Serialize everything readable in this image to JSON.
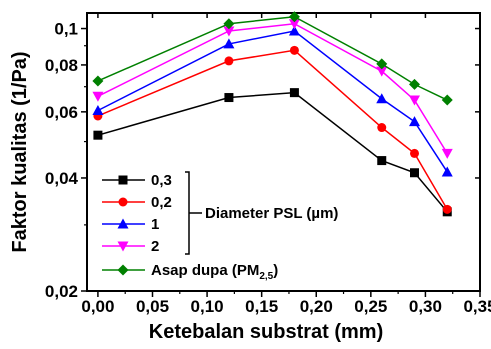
{
  "chart_data": {
    "type": "line",
    "xlabel": "Ketebalan substrat (mm)",
    "ylabel": "Faktor kualitas (1/Pa)",
    "x_scale": "linear",
    "y_scale": "log",
    "xlim": [
      -0.01,
      0.35
    ],
    "ylim": [
      0.02,
      0.11
    ],
    "x_ticks": [
      0.0,
      0.05,
      0.1,
      0.15,
      0.2,
      0.25,
      0.3,
      0.35
    ],
    "x_tick_labels": [
      "0,00",
      "0,05",
      "0,10",
      "0,15",
      "0,20",
      "0,25",
      "0,30",
      "0,35"
    ],
    "y_ticks": [
      0.02,
      0.04,
      0.06,
      0.08,
      0.1
    ],
    "y_tick_labels": [
      "0,02",
      "0,04",
      "0,06",
      "0,08",
      "0,1"
    ],
    "x": [
      0.0,
      0.12,
      0.18,
      0.26,
      0.29,
      0.32
    ],
    "series": [
      {
        "name": "0,3",
        "color": "#000000",
        "marker": "square",
        "values": [
          0.052,
          0.0655,
          0.0675,
          0.0445,
          0.0413,
          0.0325
        ]
      },
      {
        "name": "0,2",
        "color": "#ff0000",
        "marker": "circle",
        "values": [
          0.0585,
          0.082,
          0.0875,
          0.0545,
          0.0465,
          0.033
        ]
      },
      {
        "name": "1",
        "color": "#0000ff",
        "marker": "triangle-up",
        "values": [
          0.0605,
          0.091,
          0.0985,
          0.065,
          0.0565,
          0.0415
        ]
      },
      {
        "name": "2",
        "color": "#ff00ff",
        "marker": "triangle-down",
        "values": [
          0.066,
          0.0985,
          0.103,
          0.077,
          0.0645,
          0.0465
        ]
      },
      {
        "name": "Asap dupa (PM2.5)",
        "color": "#008000",
        "marker": "diamond",
        "values": [
          0.0725,
          0.103,
          0.1075,
          0.0805,
          0.071,
          0.0645
        ]
      }
    ],
    "legend_placement": "bottom-left",
    "legend_group_annotation": "Diameter PSL (µm)",
    "legend_group_members": [
      "0,3",
      "0,2",
      "1",
      "2"
    ],
    "legend_extra_label": {
      "text": "Asap dupa (PM",
      "subscript": "2,5",
      "suffix": ")"
    },
    "grid": false
  }
}
